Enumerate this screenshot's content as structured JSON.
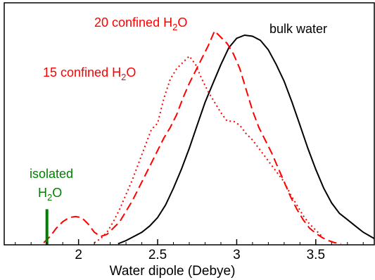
{
  "chart_data": {
    "type": "line",
    "title": "",
    "xlabel": "Water dipole (Debye)",
    "ylabel": "",
    "xlim": [
      1.53,
      3.87
    ],
    "ylim": [
      0,
      1.0
    ],
    "x_ticks": [
      2,
      2.5,
      3,
      3.5
    ],
    "x_tick_labels": [
      "2",
      "2.5",
      "3",
      "3.5"
    ],
    "y_ticks_shown": false,
    "grid": false,
    "legend": "none",
    "series": [
      {
        "name": "bulk water",
        "color": "#000000",
        "style": "solid",
        "x": [
          2.25,
          2.3,
          2.35,
          2.4,
          2.45,
          2.5,
          2.55,
          2.6,
          2.65,
          2.7,
          2.75,
          2.8,
          2.85,
          2.9,
          2.95,
          3.0,
          3.05,
          3.1,
          3.15,
          3.2,
          3.25,
          3.3,
          3.35,
          3.4,
          3.45,
          3.5,
          3.55,
          3.6,
          3.65,
          3.7,
          3.75,
          3.8,
          3.87
        ],
        "y": [
          0.005,
          0.02,
          0.04,
          0.06,
          0.09,
          0.13,
          0.19,
          0.27,
          0.36,
          0.46,
          0.57,
          0.68,
          0.77,
          0.86,
          0.94,
          0.985,
          1.0,
          0.995,
          0.975,
          0.93,
          0.86,
          0.78,
          0.68,
          0.57,
          0.46,
          0.36,
          0.27,
          0.2,
          0.15,
          0.12,
          0.09,
          0.06,
          0.03
        ]
      },
      {
        "name": "",
        "color": "#ff0000",
        "style": "dashed",
        "x": [
          1.78,
          1.82,
          1.86,
          1.9,
          1.94,
          1.98,
          2.02,
          2.06,
          2.1,
          2.14,
          2.18,
          2.22,
          2.26,
          2.3,
          2.34,
          2.38,
          2.42,
          2.46,
          2.5,
          2.54,
          2.58,
          2.62,
          2.66,
          2.7,
          2.74,
          2.78,
          2.82,
          2.86,
          2.9,
          2.94,
          2.98,
          3.02,
          3.06,
          3.1,
          3.14,
          3.18,
          3.22,
          3.26,
          3.3,
          3.34,
          3.38,
          3.42,
          3.46,
          3.5,
          3.54,
          3.58,
          3.62,
          3.66
        ],
        "y": [
          0.01,
          0.04,
          0.08,
          0.11,
          0.13,
          0.135,
          0.13,
          0.1,
          0.06,
          0.04,
          0.05,
          0.08,
          0.11,
          0.16,
          0.21,
          0.27,
          0.33,
          0.39,
          0.45,
          0.51,
          0.56,
          0.62,
          0.7,
          0.77,
          0.83,
          0.89,
          0.95,
          1.02,
          0.99,
          0.96,
          0.91,
          0.84,
          0.74,
          0.64,
          0.56,
          0.5,
          0.44,
          0.37,
          0.3,
          0.23,
          0.17,
          0.12,
          0.08,
          0.055,
          0.035,
          0.02,
          0.01,
          0.005
        ]
      },
      {
        "name": "",
        "color": "#ff0000",
        "style": "dotted",
        "x": [
          2.1,
          2.14,
          2.18,
          2.22,
          2.26,
          2.3,
          2.34,
          2.38,
          2.42,
          2.46,
          2.5,
          2.54,
          2.58,
          2.62,
          2.66,
          2.7,
          2.74,
          2.78,
          2.82,
          2.86,
          2.9,
          2.94,
          2.98,
          3.02,
          3.06,
          3.1,
          3.14,
          3.18,
          3.22,
          3.26,
          3.3,
          3.34,
          3.38,
          3.42,
          3.46,
          3.5,
          3.54
        ],
        "y": [
          0.01,
          0.03,
          0.06,
          0.11,
          0.17,
          0.24,
          0.31,
          0.39,
          0.47,
          0.55,
          0.58,
          0.7,
          0.79,
          0.84,
          0.87,
          0.9,
          0.86,
          0.79,
          0.73,
          0.68,
          0.63,
          0.59,
          0.59,
          0.57,
          0.53,
          0.5,
          0.46,
          0.42,
          0.38,
          0.34,
          0.3,
          0.24,
          0.19,
          0.14,
          0.1,
          0.07,
          0.04
        ]
      }
    ],
    "annotations": [
      {
        "key": "bulk",
        "color": "#000000"
      },
      {
        "key": "c20",
        "color": "#ff0000"
      },
      {
        "key": "c15",
        "color": "#ff0000"
      },
      {
        "key": "iso",
        "color": "#008000"
      }
    ],
    "isolated_marker": {
      "x": 1.8,
      "y_top": 0.17,
      "color": "#008000"
    }
  },
  "labels": {
    "bulk": "bulk water",
    "c20_main": "20 confined H",
    "c20_sub": "2",
    "c20_end": "O",
    "c15_main": "15 confined H",
    "c15_sub": "2",
    "c15_end": "O",
    "iso_line1": "isolated",
    "iso_main": "H",
    "iso_sub": "2",
    "iso_end": "O"
  }
}
